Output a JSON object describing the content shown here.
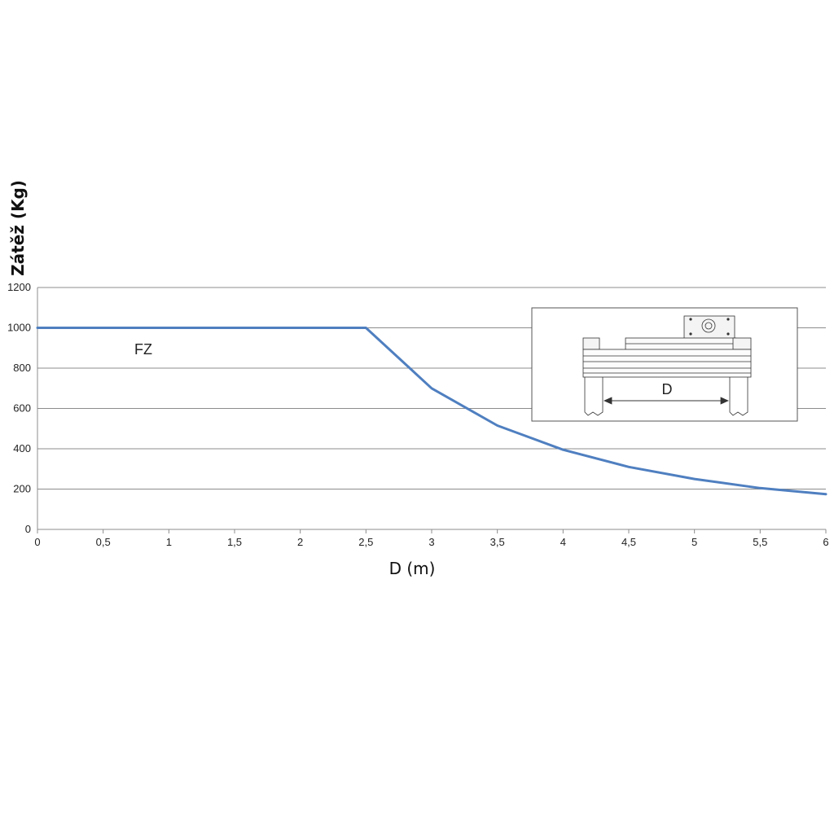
{
  "chart_data": {
    "type": "line",
    "title": "",
    "xlabel": "D (m)",
    "ylabel": "Zátěž (Kg)",
    "xlim": [
      0,
      6
    ],
    "ylim": [
      0,
      1200
    ],
    "x_ticks": [
      "0",
      "0,5",
      "1",
      "1,5",
      "2",
      "2,5",
      "3",
      "3,5",
      "4",
      "4,5",
      "5",
      "5,5",
      "6"
    ],
    "y_ticks": [
      "0",
      "200",
      "400",
      "600",
      "800",
      "1000",
      "1200"
    ],
    "grid": "horizontal",
    "series": [
      {
        "name": "FZ",
        "color": "#4f7fc0",
        "x": [
          0,
          0.5,
          1,
          1.5,
          2,
          2.5,
          3,
          3.5,
          4,
          4.5,
          5,
          5.5,
          6
        ],
        "y": [
          1000,
          1000,
          1000,
          1000,
          1000,
          1000,
          700,
          515,
          395,
          310,
          250,
          205,
          175
        ]
      }
    ],
    "inset": {
      "label": "D"
    }
  }
}
